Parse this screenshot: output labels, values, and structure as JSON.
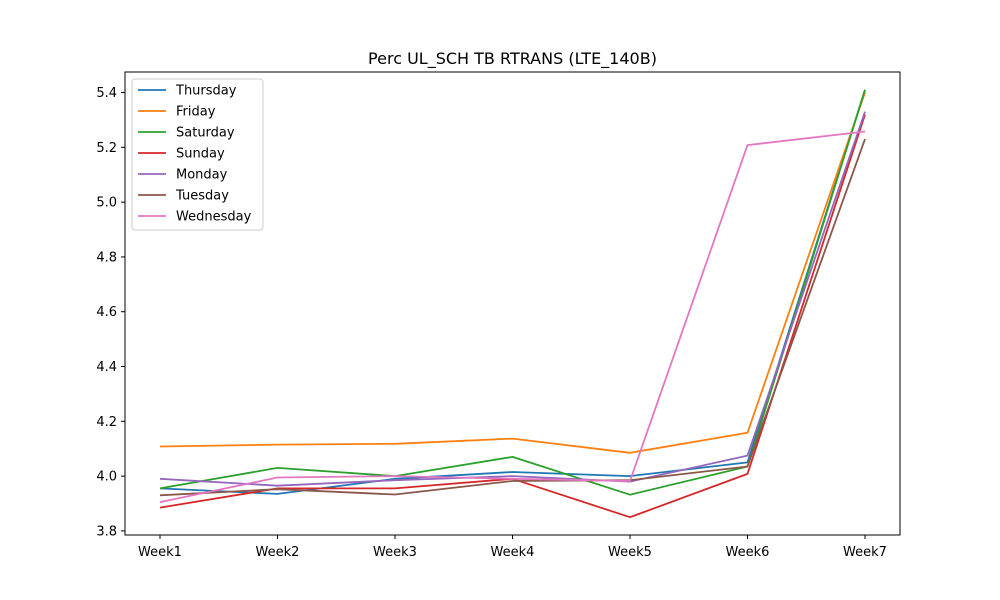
{
  "chart_data": {
    "type": "line",
    "title": "Perc UL_SCH TB RTRANS (LTE_140B)",
    "xlabel": "",
    "ylabel": "",
    "categories": [
      "Week1",
      "Week2",
      "Week3",
      "Week4",
      "Week5",
      "Week6",
      "Week7"
    ],
    "ylim": [
      3.785,
      5.475
    ],
    "yticks": [
      3.8,
      4.0,
      4.2,
      4.4,
      4.6,
      4.8,
      5.0,
      5.2,
      5.4
    ],
    "ytick_labels": [
      "3.8",
      "4.0",
      "4.2",
      "4.4",
      "4.6",
      "4.8",
      "5.0",
      "5.2",
      "5.4"
    ],
    "grid": false,
    "legend_position": "top-left",
    "series": [
      {
        "name": "Thursday",
        "color": "#1f77b4",
        "values": [
          3.955,
          3.935,
          3.99,
          4.015,
          4.0,
          4.05,
          5.41
        ]
      },
      {
        "name": "Friday",
        "color": "#ff7f0e",
        "values": [
          4.108,
          4.115,
          4.118,
          4.137,
          4.085,
          4.158,
          5.4
        ]
      },
      {
        "name": "Saturday",
        "color": "#2ca02c",
        "values": [
          3.955,
          4.03,
          4.0,
          4.07,
          3.932,
          4.035,
          5.41
        ]
      },
      {
        "name": "Sunday",
        "color": "#d62728",
        "values": [
          3.885,
          3.955,
          3.955,
          3.99,
          3.85,
          4.008,
          5.32
        ]
      },
      {
        "name": "Monday",
        "color": "#9467bd",
        "values": [
          3.99,
          3.965,
          3.985,
          4.0,
          3.98,
          4.075,
          5.33
        ]
      },
      {
        "name": "Tuesday",
        "color": "#8c564b",
        "values": [
          3.93,
          3.952,
          3.933,
          3.982,
          3.985,
          4.035,
          5.23
        ]
      },
      {
        "name": "Wednesday",
        "color": "#e377c2",
        "values": [
          3.905,
          3.995,
          4.0,
          3.99,
          3.982,
          5.208,
          5.258
        ]
      }
    ]
  }
}
